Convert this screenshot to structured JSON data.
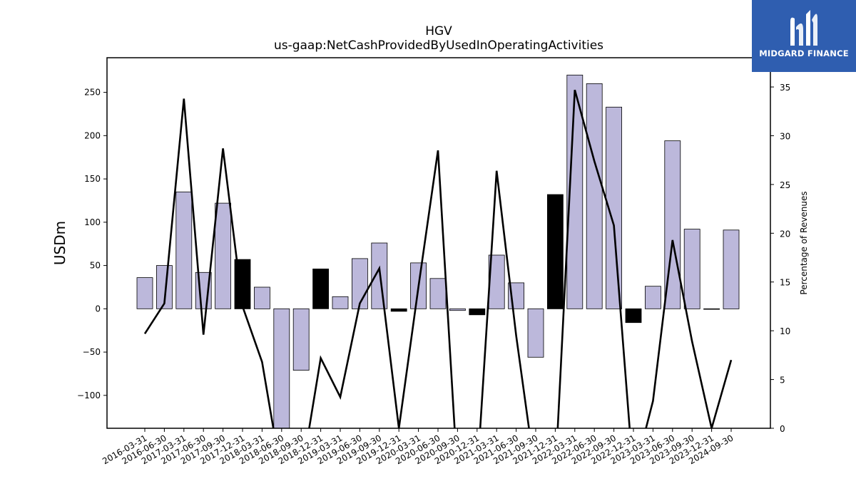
{
  "brand": {
    "name": "MIDGARD FINANCE",
    "logo_color": "#2f5eb0"
  },
  "chart_data": {
    "type": "bar",
    "title": "HGV",
    "subtitle": "us-gaap:NetCashProvidedByUsedInOperatingActivities",
    "ylabel": "USDm",
    "ylabel_right": "Percentage of Revenues",
    "ylim": [
      -138,
      290
    ],
    "ylim_right": [
      0,
      38
    ],
    "yticks": [
      -100,
      -50,
      0,
      50,
      100,
      150,
      200,
      250
    ],
    "yticks_right": [
      0,
      5,
      10,
      15,
      20,
      25,
      30,
      35
    ],
    "grid": false,
    "categories": [
      "2016-03-31",
      "2016-06-30",
      "2017-03-31",
      "2017-06-30",
      "2017-09-30",
      "2017-12-31",
      "2018-03-31",
      "2018-06-30",
      "2018-09-30",
      "2018-12-31",
      "2019-03-31",
      "2019-06-30",
      "2019-09-30",
      "2019-12-31",
      "2020-03-31",
      "2020-06-30",
      "2020-09-30",
      "2020-12-31",
      "2021-03-31",
      "2021-06-30",
      "2021-09-30",
      "2021-12-31",
      "2022-03-31",
      "2022-06-30",
      "2022-09-30",
      "2022-12-31",
      "2023-03-31",
      "2023-06-30",
      "2023-09-30",
      "2023-12-31",
      "2024-09-30"
    ],
    "series": [
      {
        "kind": "bar",
        "values": [
          36,
          50,
          135,
          42,
          122,
          57,
          25,
          -138,
          -71,
          46,
          14,
          58,
          76,
          -3,
          53,
          35,
          -2,
          -7,
          62,
          30,
          -56,
          132,
          270,
          260,
          233,
          -16,
          26,
          194,
          92,
          0,
          91
        ],
        "color": "#bcb8db",
        "highlight_color": "#000000",
        "highlight_categories": [
          "2017-12-31",
          "2018-12-31",
          "2019-12-31",
          "2020-12-31",
          "2021-12-31",
          "2022-12-31"
        ]
      },
      {
        "kind": "line",
        "axis": "right",
        "values": [
          9.7,
          12.8,
          33.8,
          9.6,
          28.7,
          12.5,
          6.8,
          -5,
          -5,
          7.2,
          3.2,
          12.8,
          16.4,
          0,
          14.5,
          28.5,
          -5,
          -5,
          26.4,
          9.5,
          -5,
          -5,
          34.7,
          27.4,
          20.8,
          -5,
          2.8,
          19.3,
          8.9,
          0,
          7.0
        ],
        "color": "#000000"
      }
    ]
  }
}
